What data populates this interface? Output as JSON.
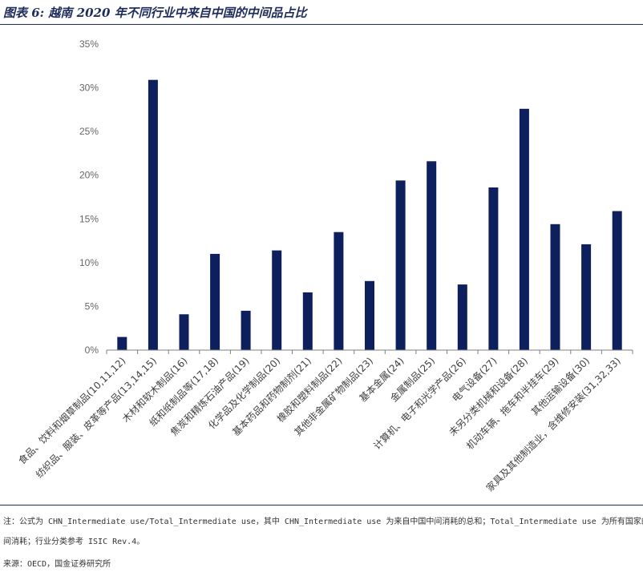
{
  "title": "图表 6: 越南 2020 年不同行业中来自中国的中间品占比",
  "notes": {
    "line1": "注：公式为 CHN_Intermediate use/Total_Intermediate use，其中 CHN_Intermediate use 为来自中国中间消耗的总和；Total_Intermediate use 为所有国家的中",
    "line2": "间消耗；行业分类参考 ISIC Rev.4。",
    "source": "来源：OECD，国金证券研究所"
  },
  "colors": {
    "bar": "#0d1f5c",
    "axis": "#7f7f7f",
    "tick_text": "#666666",
    "rule": "#1f2d5c"
  },
  "chart_data": {
    "type": "bar",
    "title": "",
    "xlabel": "",
    "ylabel": "",
    "ylim": [
      0,
      35
    ],
    "y_ticks": [
      "0%",
      "5%",
      "10%",
      "15%",
      "20%",
      "25%",
      "30%",
      "35%"
    ],
    "y_tick_values": [
      0,
      5,
      10,
      15,
      20,
      25,
      30,
      35
    ],
    "grid": false,
    "legend": "none",
    "categories": [
      "食品、饮料和烟草制品(10,11,12)",
      "纺织品、服装、皮革等产品(13,14,15)",
      "木材和软木制品(16)",
      "纸和纸制品等(17,18)",
      "焦炭和精炼石油产品(19)",
      "化学品及化学制品(20)",
      "基本药品和药物制剂(21)",
      "橡胶和塑料制品(22)",
      "其他非金属矿物制品(23)",
      "基本金属(24)",
      "金属制品(25)",
      "计算机、电子和光学产品(26)",
      "电气设备(27)",
      "未另分类机械和设备(28)",
      "机动车辆、拖车和半挂车(29)",
      "其他运输设备(30)",
      "家具及其他制造业，含维修安装(31,32,33)"
    ],
    "values": [
      1.5,
      30.9,
      4.1,
      11.0,
      4.5,
      11.4,
      6.6,
      13.5,
      7.9,
      19.4,
      21.6,
      7.5,
      18.6,
      27.6,
      14.4,
      12.1,
      15.9
    ]
  }
}
